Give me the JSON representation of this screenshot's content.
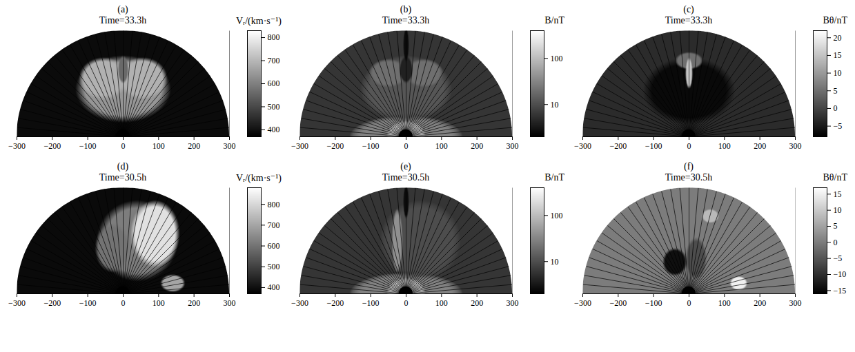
{
  "chart_data": [
    {
      "type": "heatmap",
      "panel_label": "(a)",
      "title": "Time=33.3h",
      "tick_labels": "x",
      "xlim": [
        -300,
        300
      ],
      "xticks": [
        -300,
        -200,
        -100,
        0,
        100,
        200,
        300
      ],
      "ylim": [
        0,
        300
      ],
      "outer_radius": 300,
      "sun_radius": 20,
      "colorbar": {
        "label": "Vᵣ/(km·s⁻¹)",
        "range": [
          370,
          830
        ],
        "ticks": [
          400,
          500,
          600,
          700,
          800
        ],
        "log": false
      },
      "background": 390,
      "regions": [
        {
          "x": 0,
          "y": 135,
          "rx": 135,
          "ry": 95,
          "value": 640
        },
        {
          "x": -55,
          "y": 165,
          "rx": 70,
          "ry": 60,
          "value": 690
        },
        {
          "x": 55,
          "y": 165,
          "rx": 70,
          "ry": 60,
          "value": 690
        },
        {
          "x": 0,
          "y": 190,
          "rx": 15,
          "ry": 40,
          "value": 560
        }
      ],
      "field_line_angles": [
        5,
        10,
        15,
        20,
        25,
        30,
        35,
        40,
        45,
        50,
        55,
        60,
        65,
        70,
        75,
        80,
        85,
        90,
        95,
        100,
        105,
        110,
        115,
        120,
        125,
        130,
        135,
        140,
        145,
        150,
        155,
        160,
        165,
        170,
        175
      ]
    },
    {
      "type": "heatmap",
      "panel_label": "(b)",
      "title": "Time=33.3h",
      "tick_labels": "x",
      "xlim": [
        -300,
        300
      ],
      "xticks": [
        -300,
        -200,
        -100,
        0,
        100,
        200,
        300
      ],
      "ylim": [
        0,
        300
      ],
      "outer_radius": 300,
      "sun_radius": 20,
      "colorbar": {
        "label": "B/nT",
        "range": [
          2,
          400
        ],
        "ticks": [
          10,
          100
        ],
        "log": true
      },
      "background": 6,
      "regions": [
        {
          "x": 0,
          "y": 0,
          "rx": 160,
          "ry": 60,
          "value": 30
        },
        {
          "x": 0,
          "y": 0,
          "rx": 55,
          "ry": 45,
          "value": 150
        },
        {
          "x": 0,
          "y": 135,
          "rx": 130,
          "ry": 95,
          "value": 12
        },
        {
          "x": -50,
          "y": 180,
          "rx": 55,
          "ry": 40,
          "value": 20
        },
        {
          "x": 50,
          "y": 180,
          "rx": 55,
          "ry": 40,
          "value": 20
        },
        {
          "x": 0,
          "y": 190,
          "rx": 20,
          "ry": 40,
          "value": 4
        },
        {
          "x": 0,
          "y": 260,
          "rx": 8,
          "ry": 50,
          "value": 2.5
        }
      ],
      "field_line_angles": [
        5,
        10,
        15,
        20,
        25,
        30,
        35,
        40,
        45,
        50,
        55,
        60,
        65,
        70,
        75,
        80,
        85,
        90,
        95,
        100,
        105,
        110,
        115,
        120,
        125,
        130,
        135,
        140,
        145,
        150,
        155,
        160,
        165,
        170,
        175
      ]
    },
    {
      "type": "heatmap",
      "panel_label": "(c)",
      "title": "Time=33.3h",
      "tick_labels": "x",
      "xlim": [
        -300,
        300
      ],
      "xticks": [
        -300,
        -200,
        -100,
        0,
        100,
        200,
        300
      ],
      "ylim": [
        0,
        300
      ],
      "outer_radius": 300,
      "sun_radius": 20,
      "colorbar": {
        "label": "Bθ/nT",
        "range": [
          -8,
          22
        ],
        "ticks": [
          -5,
          0,
          5,
          10,
          15,
          20
        ],
        "log": false
      },
      "background": -3,
      "regions": [
        {
          "x": 0,
          "y": 130,
          "rx": 130,
          "ry": 95,
          "value": -7
        },
        {
          "x": 0,
          "y": 215,
          "rx": 40,
          "ry": 25,
          "value": 5
        },
        {
          "x": 0,
          "y": 180,
          "rx": 10,
          "ry": 45,
          "value": 15
        }
      ],
      "field_line_angles": [
        5,
        10,
        15,
        20,
        25,
        30,
        35,
        40,
        45,
        50,
        55,
        60,
        65,
        70,
        75,
        80,
        85,
        90,
        95,
        100,
        105,
        110,
        115,
        120,
        125,
        130,
        135,
        140,
        145,
        150,
        155,
        160,
        165,
        170,
        175
      ]
    },
    {
      "type": "heatmap",
      "panel_label": "(d)",
      "title": "Time=30.5h",
      "tick_labels": "x",
      "xlim": [
        -300,
        300
      ],
      "xticks": [
        -300,
        -200,
        -100,
        0,
        100,
        200,
        300
      ],
      "ylim": [
        0,
        300
      ],
      "outer_radius": 300,
      "sun_radius": 20,
      "colorbar": {
        "label": "Vᵣ/(km·s⁻¹)",
        "range": [
          370,
          880
        ],
        "ticks": [
          400,
          500,
          600,
          700,
          800
        ],
        "log": false
      },
      "background": 390,
      "regions": [
        {
          "x": 40,
          "y": 150,
          "rx": 115,
          "ry": 115,
          "value": 620
        },
        {
          "x": -30,
          "y": 130,
          "rx": 50,
          "ry": 70,
          "value": 600
        },
        {
          "x": 90,
          "y": 170,
          "rx": 70,
          "ry": 95,
          "value": 820
        },
        {
          "x": 140,
          "y": 30,
          "rx": 35,
          "ry": 25,
          "value": 700
        }
      ],
      "field_line_angles": [
        5,
        10,
        15,
        20,
        25,
        30,
        35,
        40,
        45,
        50,
        55,
        60,
        65,
        70,
        75,
        80,
        85,
        90,
        95,
        100,
        105,
        110,
        115,
        120,
        125,
        130,
        135,
        140,
        145,
        150,
        155,
        160,
        165,
        170,
        175
      ]
    },
    {
      "type": "heatmap",
      "panel_label": "(e)",
      "title": "Time=30.5h",
      "tick_labels": "x",
      "xlim": [
        -300,
        300
      ],
      "xticks": [
        -300,
        -200,
        -100,
        0,
        100,
        200,
        300
      ],
      "ylim": [
        0,
        300
      ],
      "outer_radius": 300,
      "sun_radius": 20,
      "colorbar": {
        "label": "B/nT",
        "range": [
          2,
          400
        ],
        "ticks": [
          10,
          100
        ],
        "log": true
      },
      "background": 6,
      "regions": [
        {
          "x": 0,
          "y": 0,
          "rx": 160,
          "ry": 60,
          "value": 30
        },
        {
          "x": 0,
          "y": 0,
          "rx": 55,
          "ry": 45,
          "value": 150
        },
        {
          "x": 40,
          "y": 150,
          "rx": 115,
          "ry": 115,
          "value": 10
        },
        {
          "x": -25,
          "y": 150,
          "rx": 15,
          "ry": 90,
          "value": 40
        },
        {
          "x": 0,
          "y": 260,
          "rx": 8,
          "ry": 50,
          "value": 2.5
        }
      ],
      "field_line_angles": [
        5,
        10,
        15,
        20,
        25,
        30,
        35,
        40,
        45,
        50,
        55,
        60,
        65,
        70,
        75,
        80,
        85,
        90,
        95,
        100,
        105,
        110,
        115,
        120,
        125,
        130,
        135,
        140,
        145,
        150,
        155,
        160,
        165,
        170,
        175
      ]
    },
    {
      "type": "heatmap",
      "panel_label": "(f)",
      "title": "Time=30.5h",
      "tick_labels": "x",
      "xlim": [
        -300,
        300
      ],
      "xticks": [
        -300,
        -200,
        -100,
        0,
        100,
        200,
        300
      ],
      "ylim": [
        0,
        300
      ],
      "outer_radius": 300,
      "sun_radius": 20,
      "colorbar": {
        "label": "Bθ/nT",
        "range": [
          -16,
          17
        ],
        "ticks": [
          -15,
          -10,
          -5,
          0,
          5,
          10,
          15
        ],
        "log": false
      },
      "background": 0,
      "regions": [
        {
          "x": -40,
          "y": 90,
          "rx": 35,
          "ry": 40,
          "value": -14
        },
        {
          "x": 20,
          "y": 100,
          "rx": 30,
          "ry": 60,
          "value": -6
        },
        {
          "x": 140,
          "y": 30,
          "rx": 25,
          "ry": 20,
          "value": 15
        },
        {
          "x": 60,
          "y": 220,
          "rx": 25,
          "ry": 20,
          "value": 8
        }
      ],
      "field_line_angles": [
        5,
        10,
        15,
        20,
        25,
        30,
        35,
        40,
        45,
        50,
        55,
        60,
        65,
        70,
        75,
        80,
        85,
        90,
        95,
        100,
        105,
        110,
        115,
        120,
        125,
        130,
        135,
        140,
        145,
        150,
        155,
        160,
        165,
        170,
        175
      ]
    }
  ]
}
